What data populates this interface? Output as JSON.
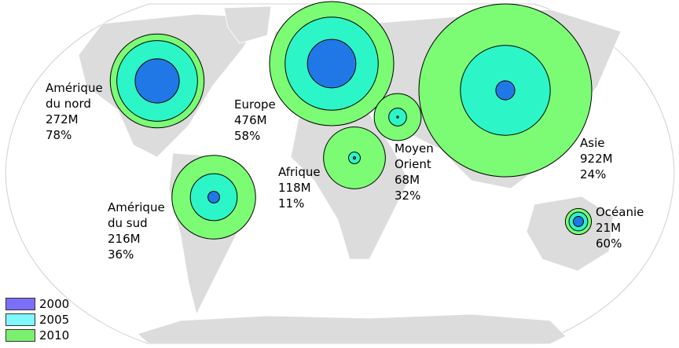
{
  "chart_data": {
    "type": "bubble-map",
    "title": "",
    "legend": {
      "placement": "bottom-left",
      "items": [
        {
          "label": "2000",
          "color": "#7b6ef7"
        },
        {
          "label": "2005",
          "color": "#7ef8fb"
        },
        {
          "label": "2010",
          "color": "#7bf06e"
        }
      ]
    },
    "series_colors": {
      "2000": "#1f78e6",
      "2005": "#2cf5c7",
      "2010": "#7bfc74"
    },
    "regions": [
      {
        "id": "amerique-du-nord",
        "name_lines": [
          "Amérique",
          "du nord"
        ],
        "users_label": "272M",
        "percent_label": "78%",
        "users_2010_millions": 272,
        "relative_size": {
          "2000": 0.47,
          "2005": 0.86,
          "2010": 1.0
        }
      },
      {
        "id": "amerique-du-sud",
        "name_lines": [
          "Amérique",
          "du sud"
        ],
        "users_label": "216M",
        "percent_label": "36%",
        "users_2010_millions": 216,
        "relative_size": {
          "2000": 0.14,
          "2005": 0.56,
          "2010": 1.0
        }
      },
      {
        "id": "europe",
        "name_lines": [
          "Europe"
        ],
        "users_label": "476M",
        "percent_label": "58%",
        "users_2010_millions": 476,
        "relative_size": {
          "2000": 0.39,
          "2005": 0.75,
          "2010": 1.0
        }
      },
      {
        "id": "afrique",
        "name_lines": [
          "Afrique"
        ],
        "users_label": "118M",
        "percent_label": "11%",
        "users_2010_millions": 118,
        "relative_size": {
          "2000": 0.04,
          "2005": 0.19,
          "2010": 1.0
        }
      },
      {
        "id": "moyen-orient",
        "name_lines": [
          "Moyen",
          "Orient"
        ],
        "users_label": "68M",
        "percent_label": "32%",
        "users_2010_millions": 68,
        "relative_size": {
          "2000": 0.04,
          "2005": 0.38,
          "2010": 1.0
        }
      },
      {
        "id": "asie",
        "name_lines": [
          "Asie"
        ],
        "users_label": "922M",
        "percent_label": "24%",
        "users_2010_millions": 922,
        "relative_size": {
          "2000": 0.11,
          "2005": 0.52,
          "2010": 1.0
        }
      },
      {
        "id": "oceanie",
        "name_lines": [
          "Océanie"
        ],
        "users_label": "21M",
        "percent_label": "60%",
        "users_2010_millions": 21,
        "relative_size": {
          "2000": 0.39,
          "2005": 0.72,
          "2010": 1.0
        }
      }
    ]
  }
}
